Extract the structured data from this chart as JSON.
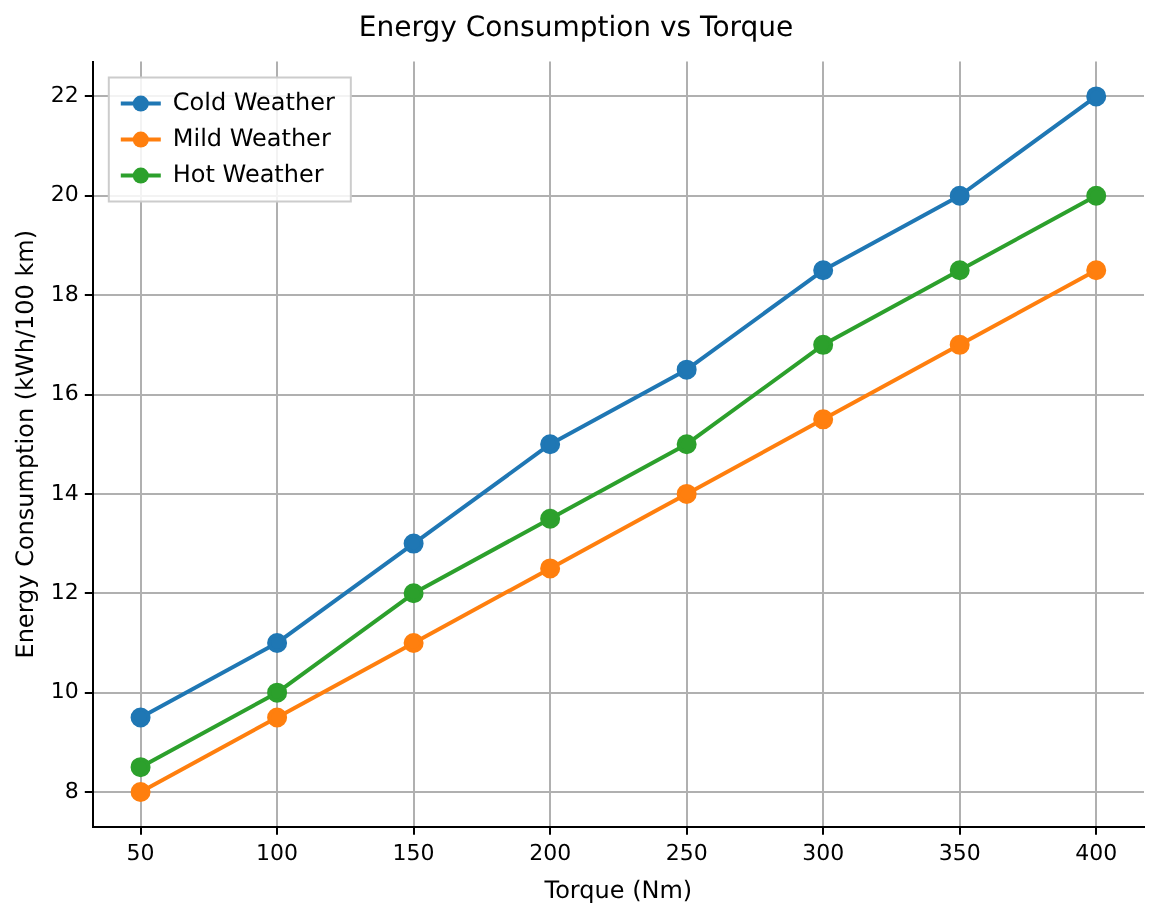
{
  "chart_data": {
    "type": "line",
    "title": "Energy Consumption vs Torque",
    "xlabel": "Torque (Nm)",
    "ylabel": "Energy Consumption (kWh/100 km)",
    "x": [
      50,
      100,
      150,
      200,
      250,
      300,
      350,
      400
    ],
    "series": [
      {
        "name": "Cold Weather",
        "color": "#1f77b4",
        "values": [
          9.5,
          11,
          13,
          15,
          16.5,
          18.5,
          20,
          22
        ]
      },
      {
        "name": "Mild Weather",
        "color": "#ff7f0e",
        "values": [
          8,
          9.5,
          11,
          12.5,
          14,
          15.5,
          17,
          18.5
        ]
      },
      {
        "name": "Hot Weather",
        "color": "#2ca02c",
        "values": [
          8.5,
          10,
          12,
          13.5,
          15,
          17,
          18.5,
          20
        ]
      }
    ],
    "xlim": [
      32.5,
      417.5
    ],
    "xticks": [
      50,
      100,
      150,
      200,
      250,
      300,
      350,
      400
    ],
    "ylim": [
      7.3,
      22.7
    ],
    "yticks": [
      8,
      10,
      12,
      14,
      16,
      18,
      20,
      22
    ],
    "grid": true,
    "legend": "top left",
    "marker": "circle",
    "line_style": "solid"
  }
}
